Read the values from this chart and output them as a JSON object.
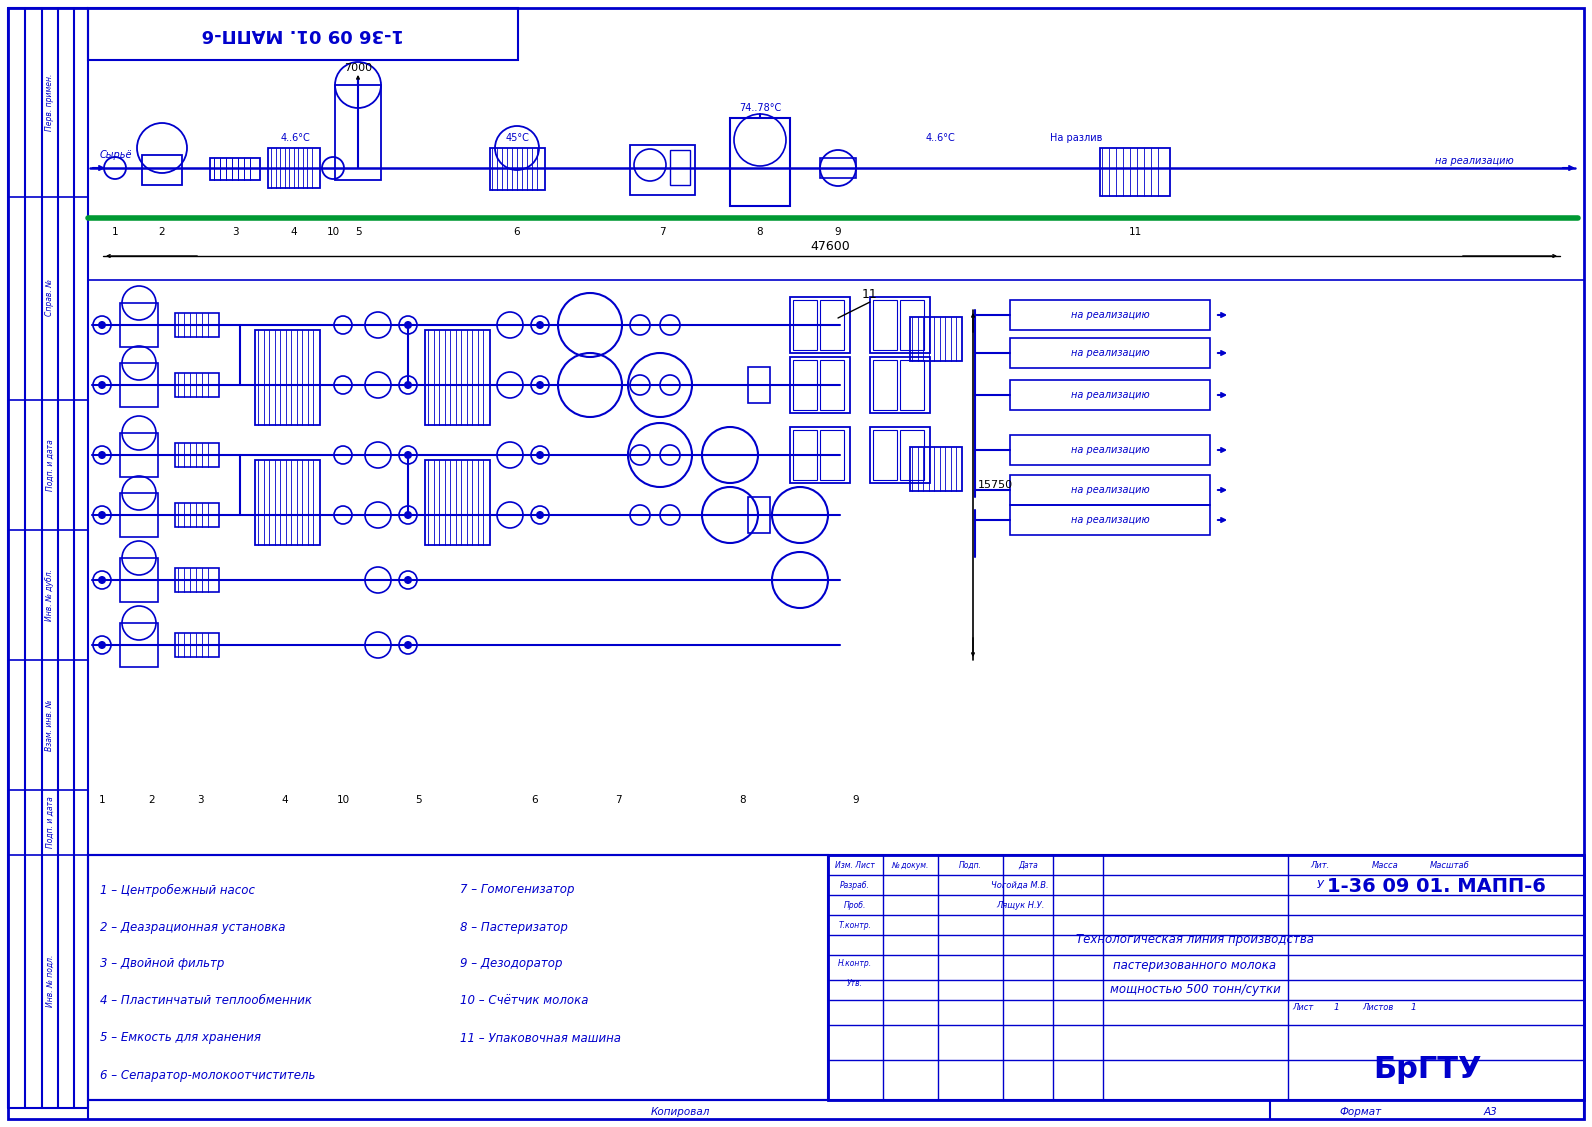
{
  "bg_color": "#ffffff",
  "border_color": "#0000cc",
  "pipe_color": "#0000cc",
  "black": "#000000",
  "green_line_color": "#009933",
  "title_doc": "1-36 09 01. МАПП-6",
  "subtitle_lines": [
    "Технологическая линия производства",
    "пастеризованного молока",
    "мощностью 500 тонн/сутки"
  ],
  "university": "БрГТУ",
  "legend_col1": [
    "1 – Центробежный насос",
    "2 – Деазрационная установка",
    "3 – Двойной фильтр",
    "4 – Пластинчатый теплообменник",
    "5 – Емкость для хранения",
    "6 – Сепаратор-молокоотчиститель"
  ],
  "legend_col2": [
    "7 – Гомогенизатор",
    "8 – Пастеризатор",
    "9 – Дезодоратор",
    "10 – Счётчик молока",
    "11 – Упаковочная машина"
  ],
  "dim_47600": "47600",
  "dim_15750": "15750",
  "dim_7000": "7000",
  "temp_46_1": "4..6°C",
  "temp_45": "45°C",
  "temp_74_78": "74..78°C",
  "temp_46_2": "4..6°C",
  "label_syrye": "Сырьё",
  "label_na_razliv": "На разлив",
  "label_na_realizaciyu": "на реализацию",
  "copied_text": "Копировал",
  "format_label": "Формат",
  "format_text": "А3",
  "stamp_izm": "Изм. Лист",
  "stamp_no_doc": "№ докум.",
  "stamp_podp": "Подп.",
  "stamp_data": "Дата",
  "stamp_razrab": "Разраб.",
  "stamp_razrab_name": "Чогойда М.В.",
  "stamp_prob": "Проб.",
  "stamp_prob_name": "Лящук Н.У.",
  "stamp_tkont": "Т.контр.",
  "stamp_nkont": "Н.контр.",
  "stamp_utv": "Утв.",
  "stamp_lit": "Лит.",
  "stamp_massa": "Масса",
  "stamp_masshtab": "Масштаб",
  "stamp_lit_val": "У",
  "stamp_list": "Лист",
  "stamp_listov": "Листов",
  "sidebar_texts": [
    "Перв. примен.",
    "Справ. №",
    "Подп. и дата",
    "Инв. № дубл.",
    "Взам. инв. №",
    "Подп. и дата",
    "Инв. № подл."
  ]
}
